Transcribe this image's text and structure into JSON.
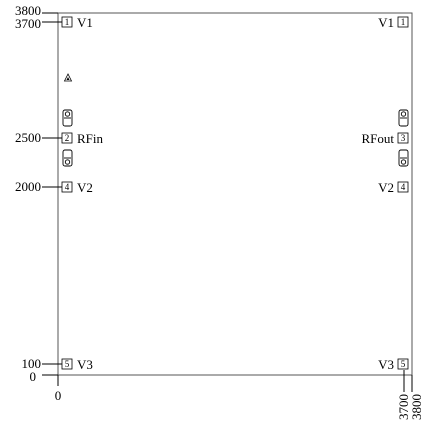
{
  "y_axis_ticks": [
    "3800",
    "3700",
    "2500",
    "2000",
    "100",
    "0"
  ],
  "x_axis_ticks": [
    "0",
    "3700",
    "3800"
  ],
  "pads_left": [
    {
      "num": "1",
      "name": "V1"
    },
    {
      "num": "2",
      "name": "RFin"
    },
    {
      "num": "4",
      "name": "V2"
    },
    {
      "num": "5",
      "name": "V3"
    }
  ],
  "pads_right": [
    {
      "num": "1",
      "name": "V1"
    },
    {
      "num": "3",
      "name": "RFout"
    },
    {
      "num": "4",
      "name": "V2"
    },
    {
      "num": "5",
      "name": "V3"
    }
  ]
}
